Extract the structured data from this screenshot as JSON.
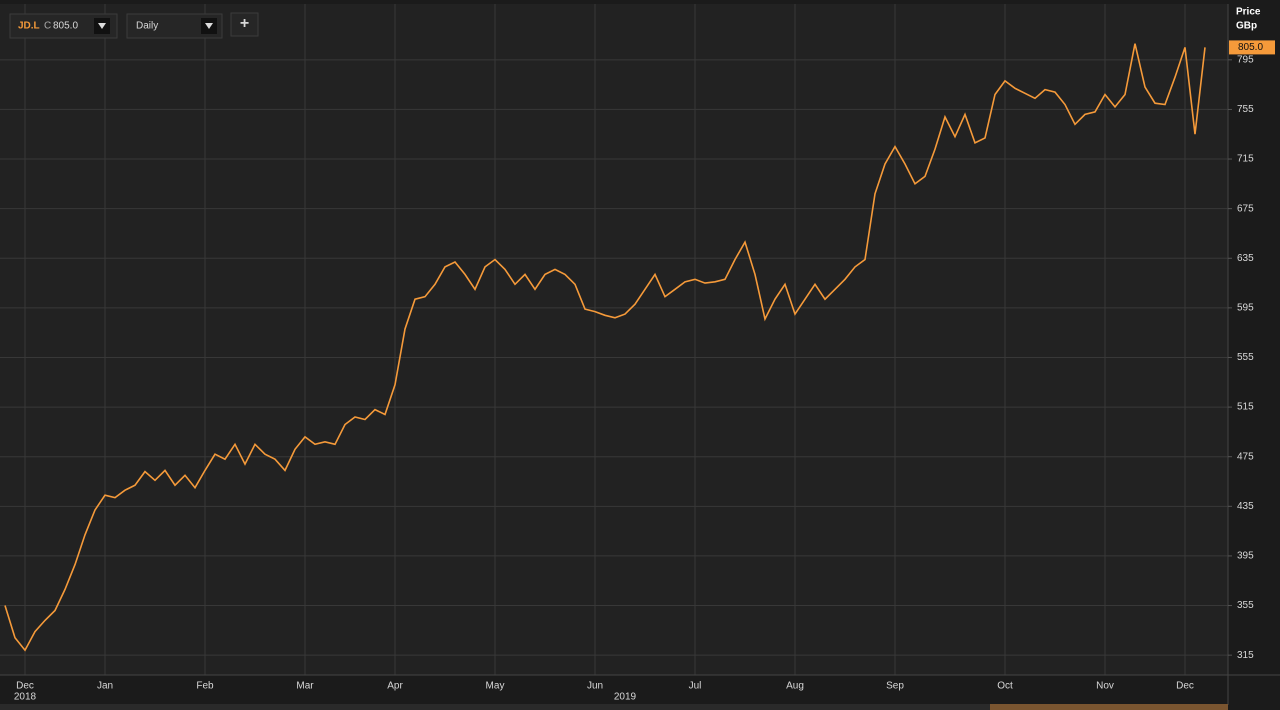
{
  "toolbar": {
    "ric": "JD.L",
    "close_prefix": "C",
    "close": "805.0",
    "interval": "Daily",
    "add": "+"
  },
  "chart_data": {
    "type": "line",
    "y_axis_title": "Price",
    "y_axis_unit": "GBp",
    "categories": [
      null,
      null,
      "Dec",
      null,
      null,
      null,
      null,
      null,
      null,
      null,
      "Jan",
      null,
      null,
      null,
      null,
      null,
      null,
      null,
      null,
      null,
      "Feb",
      null,
      null,
      null,
      null,
      null,
      null,
      null,
      null,
      null,
      "Mar",
      null,
      null,
      null,
      null,
      null,
      null,
      null,
      null,
      "Apr",
      null,
      null,
      null,
      null,
      null,
      null,
      null,
      null,
      null,
      "May",
      null,
      null,
      null,
      null,
      null,
      null,
      null,
      null,
      null,
      "Jun",
      null,
      null,
      null,
      null,
      null,
      null,
      null,
      null,
      null,
      "Jul",
      null,
      null,
      null,
      null,
      null,
      null,
      null,
      null,
      null,
      "Aug",
      null,
      null,
      null,
      null,
      null,
      null,
      null,
      null,
      null,
      "Sep",
      null,
      null,
      null,
      null,
      null,
      null,
      null,
      null,
      null,
      null,
      "Oct",
      null,
      null,
      null,
      null,
      null,
      null,
      null,
      null,
      null,
      "Nov",
      null,
      null,
      null,
      null,
      null,
      null,
      null,
      "Dec",
      null,
      null
    ],
    "years": [
      null,
      null,
      "2018",
      null,
      null,
      null,
      null,
      null,
      null,
      null,
      null,
      null,
      null,
      null,
      null,
      null,
      null,
      null,
      null,
      null,
      null,
      null,
      null,
      null,
      null,
      null,
      null,
      null,
      null,
      null,
      null,
      null,
      null,
      null,
      null,
      null,
      null,
      null,
      null,
      null,
      null,
      null,
      null,
      null,
      null,
      null,
      null,
      null,
      null,
      null,
      null,
      null,
      null,
      null,
      null,
      null,
      null,
      null,
      null,
      null,
      null,
      null,
      "2019",
      null,
      null,
      null,
      null,
      null,
      null,
      null,
      null,
      null,
      null,
      null,
      null,
      null,
      null,
      null,
      null,
      null,
      null,
      null,
      null,
      null,
      null,
      null,
      null,
      null,
      null,
      null,
      null,
      null,
      null,
      null,
      null,
      null,
      null,
      null,
      null,
      null,
      null,
      null,
      null,
      null,
      null,
      null,
      null,
      null,
      null,
      null,
      null,
      null,
      null,
      null,
      null,
      null,
      null,
      null,
      null,
      null,
      null
    ],
    "series": [
      {
        "name": "JD.L",
        "color": "#f59a3a",
        "values": [
          355,
          329,
          319,
          334,
          343,
          351,
          368,
          388,
          412,
          432,
          444,
          442,
          448,
          452,
          463,
          456,
          464,
          452,
          460,
          450,
          464,
          477,
          473,
          485,
          469,
          485,
          477,
          473,
          464,
          481,
          491,
          485,
          487,
          485,
          501,
          507,
          505,
          513,
          509,
          533,
          578,
          602,
          604,
          614,
          628,
          632,
          622,
          610,
          628,
          634,
          626,
          614,
          622,
          610,
          622,
          626,
          622,
          614,
          594,
          592,
          589,
          587,
          590,
          598,
          610,
          622,
          604,
          610,
          616,
          618,
          615,
          616,
          618,
          634,
          648,
          622,
          586,
          602,
          614,
          590,
          602,
          614,
          602,
          610,
          618,
          628,
          634,
          687,
          711,
          725,
          711,
          695,
          701,
          723,
          749,
          733,
          751,
          728,
          732,
          767,
          778,
          772,
          768,
          764,
          771,
          769,
          759,
          743,
          751,
          753,
          767,
          757,
          767,
          808,
          773,
          760,
          759,
          781,
          805,
          735,
          805
        ],
        "value_labels": [
          null,
          null,
          null,
          null,
          null,
          null,
          null,
          null,
          null,
          null,
          null,
          null,
          null,
          null,
          null,
          null,
          null,
          null,
          null,
          null,
          null,
          null,
          null,
          null,
          null,
          null,
          null,
          null,
          null,
          null,
          null,
          null,
          null,
          null,
          null,
          null,
          null,
          null,
          null,
          null,
          null,
          null,
          null,
          null,
          null,
          null,
          null,
          null,
          null,
          null,
          null,
          null,
          null,
          null,
          null,
          null,
          null,
          null,
          null,
          null,
          null,
          null,
          null,
          null,
          null,
          null,
          null,
          null,
          null,
          null,
          null,
          null,
          null,
          null,
          null,
          null,
          null,
          null,
          null,
          null,
          null,
          null,
          null,
          null,
          null,
          null,
          null,
          null,
          null,
          null,
          null,
          null,
          null,
          null,
          null,
          null,
          null,
          null,
          null,
          null,
          null,
          null,
          null,
          null,
          null,
          null,
          null,
          null,
          null,
          null,
          null,
          null,
          null,
          null,
          null,
          null,
          null,
          null,
          null,
          null,
          "805.0"
        ]
      }
    ],
    "ylim": [
      299,
      840
    ],
    "yticks": [
      315,
      355,
      395,
      435,
      475,
      515,
      555,
      595,
      635,
      675,
      715,
      755,
      795
    ],
    "grid": true
  }
}
